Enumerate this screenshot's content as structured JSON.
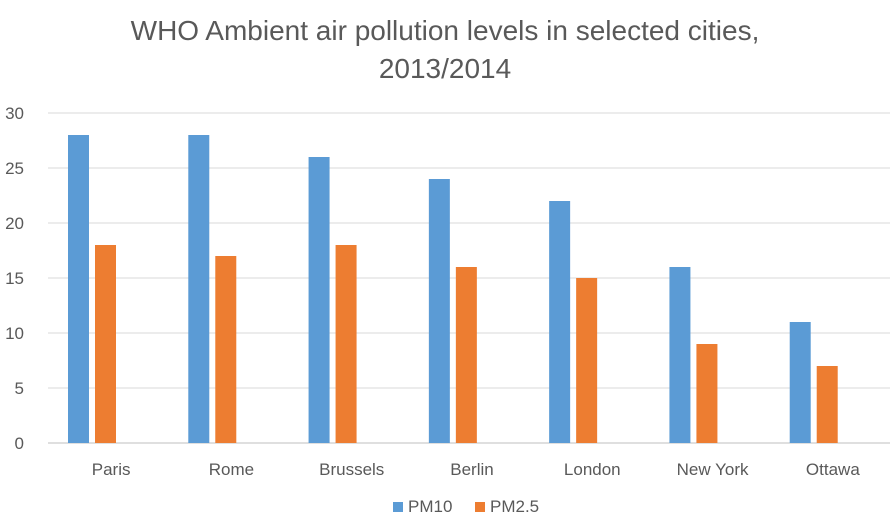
{
  "chart_data": {
    "type": "bar",
    "title_line1": "WHO Ambient air pollution levels in selected cities,",
    "title_line2": "2013/2014",
    "xlabel": "",
    "ylabel": "",
    "categories": [
      "Paris",
      "Rome",
      "Brussels",
      "Berlin",
      "London",
      "New York",
      "Ottawa"
    ],
    "series": [
      {
        "name": "PM10",
        "color": "#5b9bd5",
        "values": [
          28,
          28,
          26,
          24,
          22,
          16,
          11
        ]
      },
      {
        "name": "PM2.5",
        "color": "#ed7d31",
        "values": [
          18,
          17,
          18,
          16,
          15,
          9,
          7
        ]
      }
    ],
    "ylim": [
      0,
      30
    ],
    "yticks": [
      0,
      5,
      10,
      15,
      20,
      25,
      30
    ],
    "grid": true,
    "legend_position": "bottom"
  }
}
